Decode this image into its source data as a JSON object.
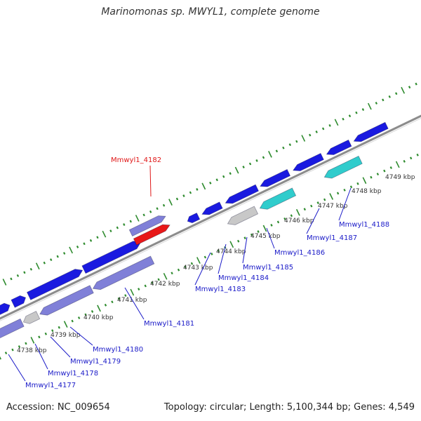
{
  "title": "Marinomonas sp. MWYL1, complete genome",
  "footer": {
    "accession": "Accession: NC_009654",
    "summary": "Topology: circular; Length: 5,100,344 bp; Genes: 4,549"
  },
  "colors": {
    "backbone": "#8c8c8c",
    "tick": "#2e8b2e",
    "gene_forward": "#1a1ae0",
    "gene_reverse": "#8080d8",
    "gene_highlight": "#e81818",
    "gene_cyan": "#30cccc",
    "gene_gray": "#c8c8c8",
    "label_default": "#1a1ac8",
    "label_highlight": "#e01818"
  },
  "scale": {
    "unit": "kbp",
    "labels": [
      "4738 kbp",
      "4739 kbp",
      "4740 kbp",
      "4741 kbp",
      "4742 kbp",
      "4743 kbp",
      "4744 kbp",
      "4745 kbp",
      "4746 kbp",
      "4747 kbp",
      "4748 kbp",
      "4749 kbp"
    ]
  },
  "genes": [
    {
      "name": "Mmwyl1_4177",
      "strand": "reverse",
      "color": "gene_reverse"
    },
    {
      "name": "Mmwyl1_4178",
      "strand": "reverse",
      "color": "gene_gray"
    },
    {
      "name": "Mmwyl1_4179",
      "strand": "reverse",
      "color": "gene_reverse"
    },
    {
      "name": "Mmwyl1_4180",
      "strand": "reverse",
      "color": "gene_reverse"
    },
    {
      "name": "Mmwyl1_4181",
      "strand": "reverse",
      "color": "gene_reverse"
    },
    {
      "name": "Mmwyl1_4182",
      "strand": "forward",
      "color": "gene_highlight",
      "highlight": true
    },
    {
      "name": "Mmwyl1_4183",
      "strand": "forward",
      "color": "gene_forward"
    },
    {
      "name": "Mmwyl1_4184",
      "strand": "reverse",
      "color": "gene_gray"
    },
    {
      "name": "Mmwyl1_4185",
      "strand": "forward",
      "color": "gene_forward"
    },
    {
      "name": "Mmwyl1_4186",
      "strand": "reverse",
      "color": "gene_cyan"
    },
    {
      "name": "Mmwyl1_4187",
      "strand": "forward",
      "color": "gene_forward"
    },
    {
      "name": "Mmwyl1_4188",
      "strand": "reverse",
      "color": "gene_cyan"
    }
  ]
}
